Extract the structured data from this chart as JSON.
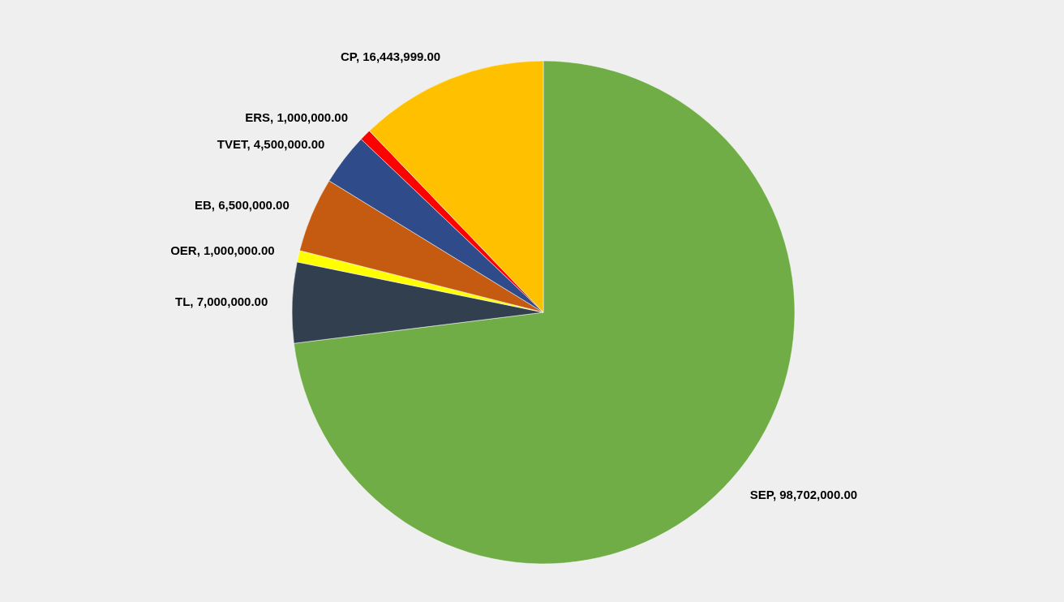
{
  "chart_data": {
    "type": "pie",
    "categories": [
      "SEP",
      "TL",
      "OER",
      "EB",
      "TVET",
      "ERS",
      "CP"
    ],
    "values": [
      98702000,
      7000000,
      1000000,
      6500000,
      4500000,
      1000000,
      16443999
    ],
    "value_labels": [
      "98,702,000.00",
      "7,000,000.00",
      "1,000,000.00",
      "6,500,000.00",
      "4,500,000.00",
      "1,000,000.00",
      "16,443,999.00"
    ],
    "colors": [
      "#70ad47",
      "#323f4f",
      "#ffff00",
      "#c55a11",
      "#2f4b8a",
      "#ff0000",
      "#ffc000"
    ]
  }
}
